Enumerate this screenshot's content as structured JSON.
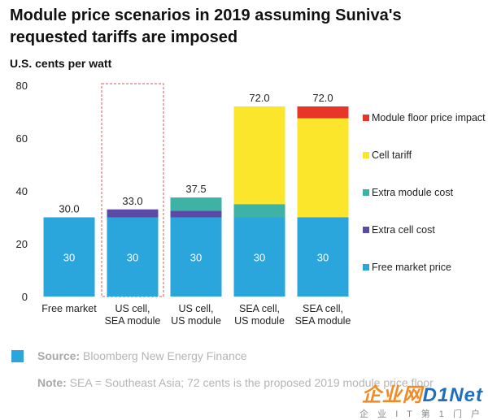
{
  "title": "Module price scenarios in 2019 assuming Suniva's requested tariffs are imposed",
  "chart_data": {
    "type": "bar",
    "stacked": true,
    "unit_label": "U.S. cents per watt",
    "ylim": [
      0,
      80
    ],
    "yticks": [
      0,
      20,
      40,
      60,
      80
    ],
    "grid": false,
    "legend_position": "right",
    "categories": [
      "Free market",
      "US cell,\nSEA module",
      "US cell,\nUS module",
      "SEA cell,\nUS module",
      "SEA cell,\nSEA module"
    ],
    "series": [
      {
        "name": "Free market price",
        "color": "#2aa6dd",
        "values": [
          30,
          30,
          30,
          30,
          30
        ]
      },
      {
        "name": "Extra cell cost",
        "color": "#5b4aa6",
        "values": [
          0,
          3,
          2.5,
          0,
          0
        ]
      },
      {
        "name": "Extra module cost",
        "color": "#3fb2a6",
        "values": [
          0,
          0,
          5,
          5,
          0
        ]
      },
      {
        "name": "Cell tariff",
        "color": "#fbe62b",
        "values": [
          0,
          0,
          0,
          37,
          37.5
        ]
      },
      {
        "name": "Module floor price impact",
        "color": "#e8352a",
        "values": [
          0,
          0,
          0,
          0,
          4.5
        ]
      }
    ],
    "legend_order": [
      "Module floor price impact",
      "Cell tariff",
      "Extra module cost",
      "Extra cell cost",
      "Free market price"
    ],
    "segment_labels": [
      "30",
      "30",
      "30",
      "30",
      "30"
    ],
    "total_labels": [
      "30.0",
      "33.0",
      "37.5",
      "72.0",
      "72.0"
    ],
    "highlighted_category_index": 1,
    "highlight_color": "#e0938e"
  },
  "source": {
    "label": "Source:",
    "text": "Bloomberg New Energy Finance",
    "swatch_color": "#2aa6dd"
  },
  "note": {
    "label": "Note:",
    "text": "SEA = Southeast Asia; 72 cents is the proposed 2019 module price floor"
  },
  "watermark": {
    "logo": "企业网",
    "logo_net": "D1Net",
    "sub": "企 业 I T 第 1 门 户"
  }
}
